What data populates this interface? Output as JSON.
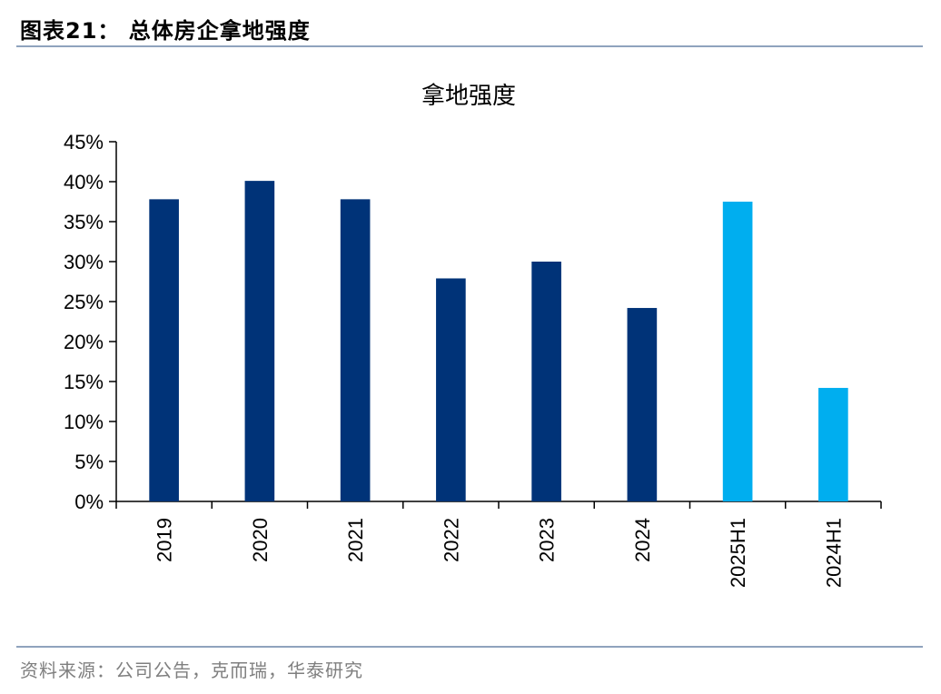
{
  "figure": {
    "label": "图表21：  总体房企拿地强度",
    "source": "资料来源：公司公告，克而瑞，华泰研究"
  },
  "chart_data": {
    "type": "bar",
    "title": "拿地强度",
    "categories": [
      "2019",
      "2020",
      "2021",
      "2022",
      "2023",
      "2024",
      "2025H1",
      "2024H1"
    ],
    "values": [
      37.8,
      40.1,
      37.8,
      27.9,
      30.0,
      24.2,
      37.5,
      14.2
    ],
    "value_unit": "%",
    "bar_colors": [
      "#003378",
      "#003378",
      "#003378",
      "#003378",
      "#003378",
      "#003378",
      "#00aeef",
      "#00aeef"
    ],
    "ylim": [
      0,
      45
    ],
    "yticks": [
      "0%",
      "5%",
      "10%",
      "15%",
      "20%",
      "25%",
      "30%",
      "35%",
      "40%",
      "45%"
    ],
    "xlabel": "",
    "ylabel": "",
    "grid": false,
    "legend": "none"
  }
}
